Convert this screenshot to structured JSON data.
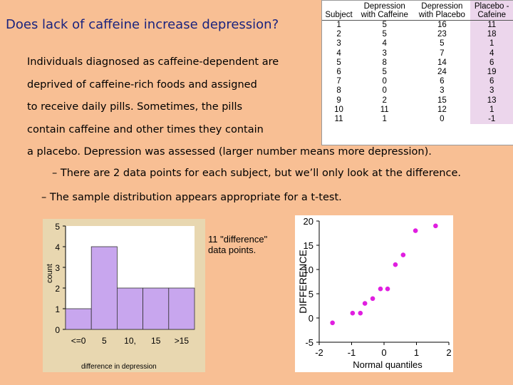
{
  "title": "Does lack of caffeine increase depression?",
  "paragraph": {
    "lines": [
      "Individuals diagnosed as caffeine-dependent are",
      "deprived of caffeine-rich foods and assigned",
      "to receive daily pills. Sometimes, the pills",
      "contain caffeine and other times they contain",
      "a placebo. Depression was assessed (larger number means more depression)."
    ]
  },
  "bullets": [
    "– There are 2 data points for each subject, but we’ll only look at the difference.",
    "– The sample distribution appears appropriate for a t-test."
  ],
  "table": {
    "headers": [
      [
        "",
        "Subject"
      ],
      [
        "Depression",
        "with Caffeine"
      ],
      [
        "Depression",
        "with Placebo"
      ],
      [
        "Placebo -",
        "Cafeine"
      ]
    ],
    "rows": [
      [
        "1",
        "5",
        "16",
        "11"
      ],
      [
        "2",
        "5",
        "23",
        "18"
      ],
      [
        "3",
        "4",
        "5",
        "1"
      ],
      [
        "4",
        "3",
        "7",
        "4"
      ],
      [
        "5",
        "8",
        "14",
        "6"
      ],
      [
        "6",
        "5",
        "24",
        "19"
      ],
      [
        "7",
        "0",
        "6",
        "6"
      ],
      [
        "8",
        "0",
        "3",
        "3"
      ],
      [
        "9",
        "2",
        "15",
        "13"
      ],
      [
        "10",
        "11",
        "12",
        "1"
      ],
      [
        "11",
        "1",
        "0",
        "-1"
      ]
    ],
    "highlight_color": "#ecd6ec"
  },
  "annotation": "11 \"difference\" data points.",
  "chart_data": [
    {
      "type": "bar",
      "title": "",
      "xlabel": "difference in depression",
      "ylabel": "count",
      "categories": [
        "<=0",
        "5",
        "10,",
        "15",
        ">15"
      ],
      "values": [
        1,
        4,
        2,
        2,
        2
      ],
      "ylim": [
        0,
        5
      ],
      "yticks": [
        "0",
        "1",
        "2",
        "3",
        "4",
        "5"
      ],
      "bar_color": "#c8a6ee"
    },
    {
      "type": "scatter",
      "title": "",
      "xlabel": "Normal quantiles",
      "ylabel": "DIFFERENCE",
      "x": [
        -1.59,
        -0.97,
        -0.73,
        -0.59,
        -0.35,
        -0.11,
        0.11,
        0.35,
        0.59,
        0.97,
        1.59
      ],
      "y": [
        -1,
        1,
        1,
        3,
        4,
        6,
        6,
        11,
        13,
        18,
        19
      ],
      "xlim": [
        -2,
        2
      ],
      "ylim": [
        -5,
        20
      ],
      "xticks": [
        "-2",
        "-1",
        "0",
        "1",
        "2"
      ],
      "yticks": [
        "-5",
        "0",
        "5",
        "10",
        "15",
        "20"
      ],
      "point_color": "#e01ee0"
    }
  ]
}
